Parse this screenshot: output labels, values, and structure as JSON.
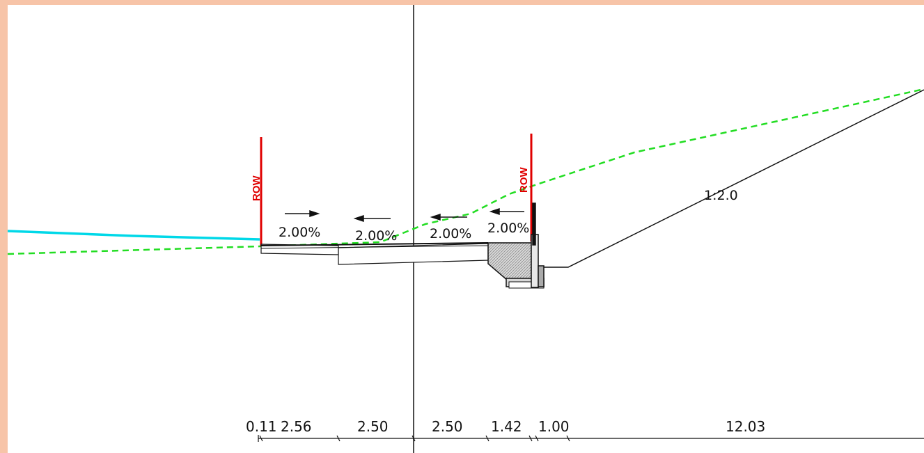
{
  "drawing": {
    "colors": {
      "background": "#f7c4a8",
      "canvas": "#ffffff",
      "row_line": "#e00000",
      "existing_ground": "#22dd22",
      "water": "#00d8e8",
      "linework": "#111111",
      "hatch": "#9a9a9a"
    },
    "row_labels": [
      "ROW",
      "ROW"
    ],
    "slope_labels": [
      "2.00%",
      "2.00%",
      "2.00%",
      "2.00%"
    ],
    "side_slope_label": "1:2.0",
    "dimensions": [
      "0.11",
      "2.56",
      "2.50",
      "2.50",
      "1.42",
      "1.00",
      "12.03"
    ]
  }
}
